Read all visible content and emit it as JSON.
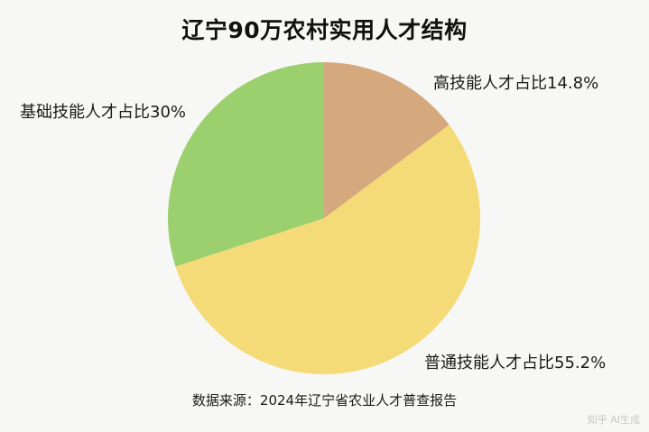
{
  "chart_data": {
    "type": "pie",
    "title": "辽宁90万农村实用人才结构",
    "slices": [
      {
        "label": "高技能人才占比14.8%",
        "value": 14.8,
        "color": "#d5a87e"
      },
      {
        "label": "普通技能人才占比55.2%",
        "value": 55.2,
        "color": "#f5da78"
      },
      {
        "label": "基础技能人才占比30%",
        "value": 30,
        "color": "#9ccf6e"
      }
    ],
    "source": "数据来源：2024年辽宁省农业人才普查报告"
  },
  "watermark": "知乎 AI生成"
}
